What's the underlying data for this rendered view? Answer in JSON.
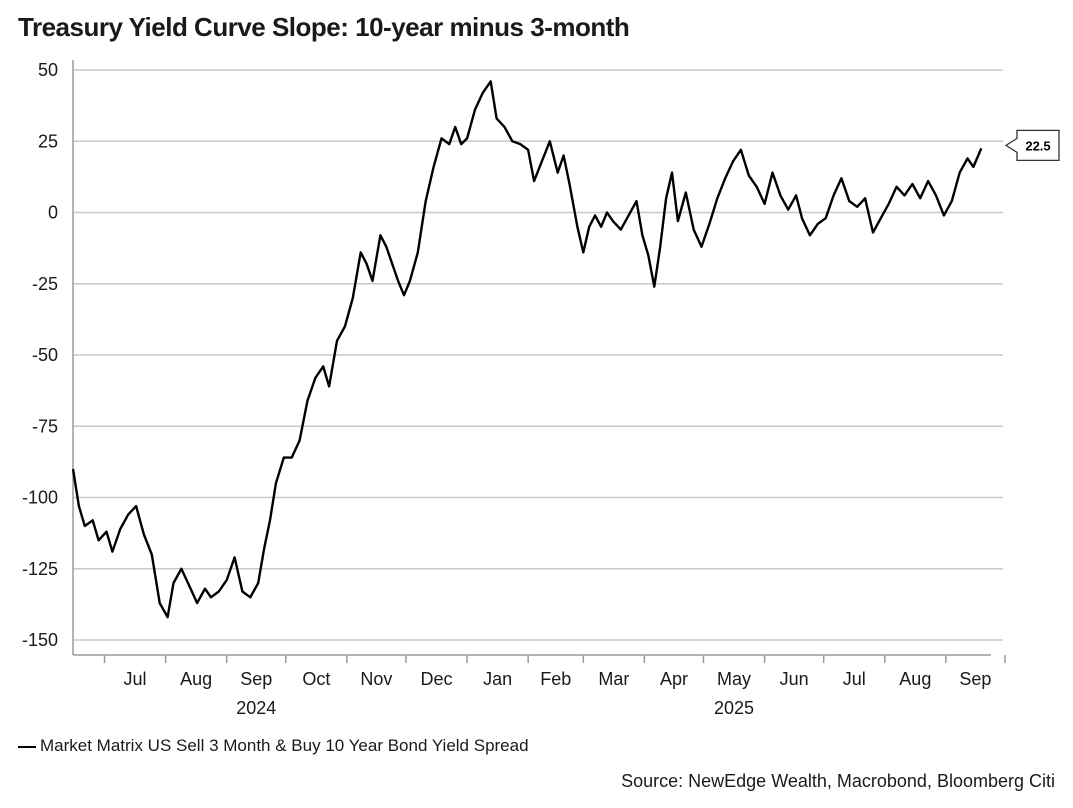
{
  "chart_data": {
    "type": "line",
    "title": "Treasury Yield Curve Slope: 10-year minus 3-month",
    "xlabel": "",
    "ylabel": "",
    "ylim": [
      -150,
      50
    ],
    "yticks": [
      50,
      25,
      0,
      -25,
      -50,
      -75,
      -100,
      -125,
      -150
    ],
    "x_start": "2024-06-15",
    "x_end": "2025-09-30",
    "month_labels": [
      "Jul",
      "Aug",
      "Sep",
      "Oct",
      "Nov",
      "Dec",
      "Jan",
      "Feb",
      "Mar",
      "Apr",
      "May",
      "Jun",
      "Jul",
      "Aug",
      "Sep"
    ],
    "year_labels": [
      {
        "label": "2024",
        "month_index": 2
      },
      {
        "label": "2025",
        "month_index": 10
      }
    ],
    "grid": true,
    "end_value_label": "22.5",
    "series": [
      {
        "name": "Market Matrix US Sell 3 Month & Buy 10 Year Bond Yield Spread",
        "color": "#000000",
        "points": [
          [
            "2024-06-15",
            -90
          ],
          [
            "2024-06-18",
            -103
          ],
          [
            "2024-06-21",
            -110
          ],
          [
            "2024-06-25",
            -108
          ],
          [
            "2024-06-28",
            -115
          ],
          [
            "2024-07-02",
            -112
          ],
          [
            "2024-07-05",
            -119
          ],
          [
            "2024-07-09",
            -111
          ],
          [
            "2024-07-13",
            -106
          ],
          [
            "2024-07-17",
            -103
          ],
          [
            "2024-07-21",
            -113
          ],
          [
            "2024-07-25",
            -120
          ],
          [
            "2024-07-29",
            -137
          ],
          [
            "2024-08-02",
            -142
          ],
          [
            "2024-08-05",
            -130
          ],
          [
            "2024-08-09",
            -125
          ],
          [
            "2024-08-13",
            -131
          ],
          [
            "2024-08-17",
            -137
          ],
          [
            "2024-08-21",
            -132
          ],
          [
            "2024-08-24",
            -135
          ],
          [
            "2024-08-28",
            -133
          ],
          [
            "2024-09-01",
            -129
          ],
          [
            "2024-09-05",
            -121
          ],
          [
            "2024-09-09",
            -133
          ],
          [
            "2024-09-13",
            -135
          ],
          [
            "2024-09-17",
            -130
          ],
          [
            "2024-09-20",
            -118
          ],
          [
            "2024-09-23",
            -108
          ],
          [
            "2024-09-26",
            -95
          ],
          [
            "2024-09-30",
            -86
          ],
          [
            "2024-10-04",
            -86
          ],
          [
            "2024-10-08",
            -80
          ],
          [
            "2024-10-12",
            -66
          ],
          [
            "2024-10-16",
            -58
          ],
          [
            "2024-10-20",
            -54
          ],
          [
            "2024-10-23",
            -61
          ],
          [
            "2024-10-27",
            -45
          ],
          [
            "2024-10-31",
            -40
          ],
          [
            "2024-11-04",
            -30
          ],
          [
            "2024-11-08",
            -14
          ],
          [
            "2024-11-11",
            -18
          ],
          [
            "2024-11-14",
            -24
          ],
          [
            "2024-11-18",
            -8
          ],
          [
            "2024-11-21",
            -12
          ],
          [
            "2024-11-24",
            -18
          ],
          [
            "2024-11-27",
            -24
          ],
          [
            "2024-11-30",
            -29
          ],
          [
            "2024-12-03",
            -24
          ],
          [
            "2024-12-07",
            -14
          ],
          [
            "2024-12-11",
            4
          ],
          [
            "2024-12-15",
            16
          ],
          [
            "2024-12-19",
            26
          ],
          [
            "2024-12-23",
            24
          ],
          [
            "2024-12-26",
            30
          ],
          [
            "2024-12-29",
            24
          ],
          [
            "2025-01-01",
            26
          ],
          [
            "2025-01-05",
            36
          ],
          [
            "2025-01-09",
            42
          ],
          [
            "2025-01-13",
            46
          ],
          [
            "2025-01-16",
            33
          ],
          [
            "2025-01-20",
            30
          ],
          [
            "2025-01-24",
            25
          ],
          [
            "2025-01-28",
            24
          ],
          [
            "2025-02-01",
            22
          ],
          [
            "2025-02-04",
            11
          ],
          [
            "2025-02-08",
            18
          ],
          [
            "2025-02-12",
            25
          ],
          [
            "2025-02-16",
            14
          ],
          [
            "2025-02-19",
            20
          ],
          [
            "2025-02-22",
            10
          ],
          [
            "2025-02-26",
            -5
          ],
          [
            "2025-03-01",
            -14
          ],
          [
            "2025-03-04",
            -5
          ],
          [
            "2025-03-07",
            -1
          ],
          [
            "2025-03-10",
            -5
          ],
          [
            "2025-03-13",
            0
          ],
          [
            "2025-03-16",
            -3
          ],
          [
            "2025-03-20",
            -6
          ],
          [
            "2025-03-24",
            -1
          ],
          [
            "2025-03-28",
            4
          ],
          [
            "2025-03-31",
            -8
          ],
          [
            "2025-04-03",
            -15
          ],
          [
            "2025-04-06",
            -26
          ],
          [
            "2025-04-09",
            -12
          ],
          [
            "2025-04-12",
            5
          ],
          [
            "2025-04-15",
            14
          ],
          [
            "2025-04-18",
            -3
          ],
          [
            "2025-04-22",
            7
          ],
          [
            "2025-04-26",
            -6
          ],
          [
            "2025-04-30",
            -12
          ],
          [
            "2025-05-04",
            -4
          ],
          [
            "2025-05-08",
            5
          ],
          [
            "2025-05-12",
            12
          ],
          [
            "2025-05-16",
            18
          ],
          [
            "2025-05-20",
            22
          ],
          [
            "2025-05-24",
            13
          ],
          [
            "2025-05-28",
            9
          ],
          [
            "2025-06-01",
            3
          ],
          [
            "2025-06-05",
            14
          ],
          [
            "2025-06-09",
            6
          ],
          [
            "2025-06-13",
            1
          ],
          [
            "2025-06-17",
            6
          ],
          [
            "2025-06-20",
            -2
          ],
          [
            "2025-06-24",
            -8
          ],
          [
            "2025-06-28",
            -4
          ],
          [
            "2025-07-02",
            -2
          ],
          [
            "2025-07-06",
            6
          ],
          [
            "2025-07-10",
            12
          ],
          [
            "2025-07-14",
            4
          ],
          [
            "2025-07-18",
            2
          ],
          [
            "2025-07-22",
            5
          ],
          [
            "2025-07-26",
            -7
          ],
          [
            "2025-07-30",
            -2
          ],
          [
            "2025-08-03",
            3
          ],
          [
            "2025-08-07",
            9
          ],
          [
            "2025-08-11",
            6
          ],
          [
            "2025-08-15",
            10
          ],
          [
            "2025-08-19",
            5
          ],
          [
            "2025-08-23",
            11
          ],
          [
            "2025-08-27",
            6
          ],
          [
            "2025-08-31",
            -1
          ],
          [
            "2025-09-04",
            4
          ],
          [
            "2025-09-08",
            14
          ],
          [
            "2025-09-12",
            19
          ],
          [
            "2025-09-15",
            16
          ],
          [
            "2025-09-19",
            22.5
          ]
        ]
      }
    ]
  },
  "legend": {
    "label": "Market Matrix US Sell 3 Month & Buy 10 Year Bond Yield Spread"
  },
  "source": "Source: NewEdge Wealth, Macrobond, Bloomberg Citi"
}
